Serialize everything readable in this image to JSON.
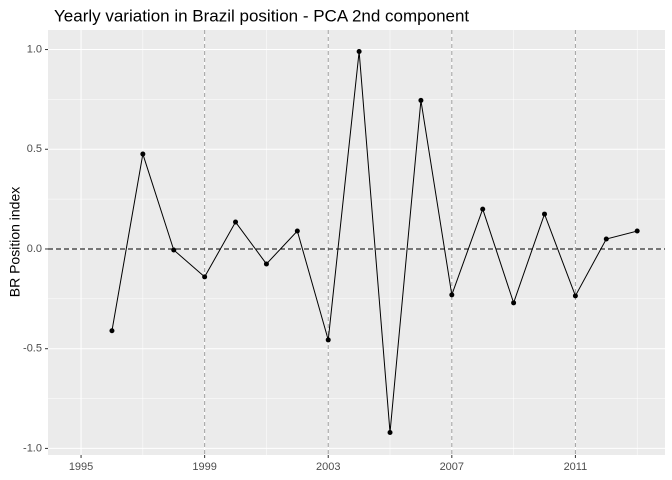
{
  "chart_data": {
    "type": "line",
    "title": "Yearly variation in Brazil position - PCA 2nd component",
    "y_label": "BR Position index",
    "x": [
      1996,
      1997,
      1998,
      1999,
      2000,
      2001,
      2002,
      2003,
      2004,
      2005,
      2006,
      2007,
      2008,
      2009,
      2010,
      2011,
      2012,
      2013
    ],
    "series": [
      {
        "color": "#000000",
        "values": [
          -0.41,
          0.476,
          -0.005,
          -0.14,
          0.135,
          -0.075,
          0.09,
          -0.456,
          0.99,
          -0.92,
          0.745,
          -0.23,
          0.2,
          -0.27,
          0.175,
          -0.235,
          0.05,
          0.09
        ]
      }
    ],
    "xlim": [
      1993.93,
      2013.9
    ],
    "ylim": [
      -1.033,
      1.098
    ],
    "xticks": [
      1995,
      1999,
      2003,
      2007,
      2011
    ],
    "yticks": [
      {
        "value": -1,
        "label": "-1.0"
      },
      {
        "value": -0.5,
        "label": "-0.5"
      },
      {
        "value": 0,
        "label": "0.0"
      },
      {
        "value": 0.5,
        "label": "0.5"
      },
      {
        "value": 1,
        "label": "1.0"
      }
    ],
    "x_minor_ticks": [
      1997,
      2001,
      2005,
      2009,
      2013
    ],
    "y_minor_ticks": [
      -0.75,
      -0.25,
      0.25,
      0.75
    ],
    "vlines": [
      1999,
      2003,
      2007,
      2011
    ],
    "hline": 0,
    "grid": true
  }
}
